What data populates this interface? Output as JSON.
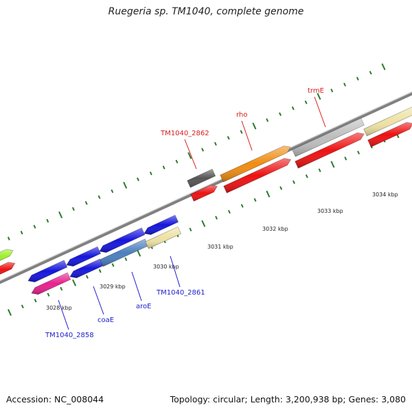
{
  "title": "Ruegeria sp. TM1040, complete genome",
  "footer": {
    "accession": "Accession: NC_008044",
    "stats": "Topology: circular; Length: 3,200,938 bp; Genes: 3,080"
  },
  "scale_labels": [
    "3028 kbp",
    "3029 kbp",
    "3030 kbp",
    "3031 kbp",
    "3032 kbp",
    "3033 kbp",
    "3034 kbp"
  ],
  "gene_labels": [
    {
      "name": "TM1040_2858",
      "strand": "minus"
    },
    {
      "name": "coaE",
      "strand": "minus"
    },
    {
      "name": "aroE",
      "strand": "minus"
    },
    {
      "name": "TM1040_2861",
      "strand": "minus"
    },
    {
      "name": "TM1040_2862",
      "strand": "plus"
    },
    {
      "name": "rho",
      "strand": "plus"
    },
    {
      "name": "trmE",
      "strand": "plus"
    }
  ],
  "colors": {
    "minus_label": "#1a1acc",
    "plus_label": "#d91a1a",
    "tick": "#2a7a2a",
    "backbone": "#808080",
    "red_cds": "#ee1111",
    "blue_cds": "#1515dd",
    "pink_cds": "#e8208e",
    "steel_cds": "#4a7fbf",
    "khaki_cds": "#eee2a4",
    "grey_cds": "#bdbdbd",
    "dark_cds": "#555555",
    "orange_cds": "#f08c10",
    "lime_cds": "#9ef02a"
  }
}
